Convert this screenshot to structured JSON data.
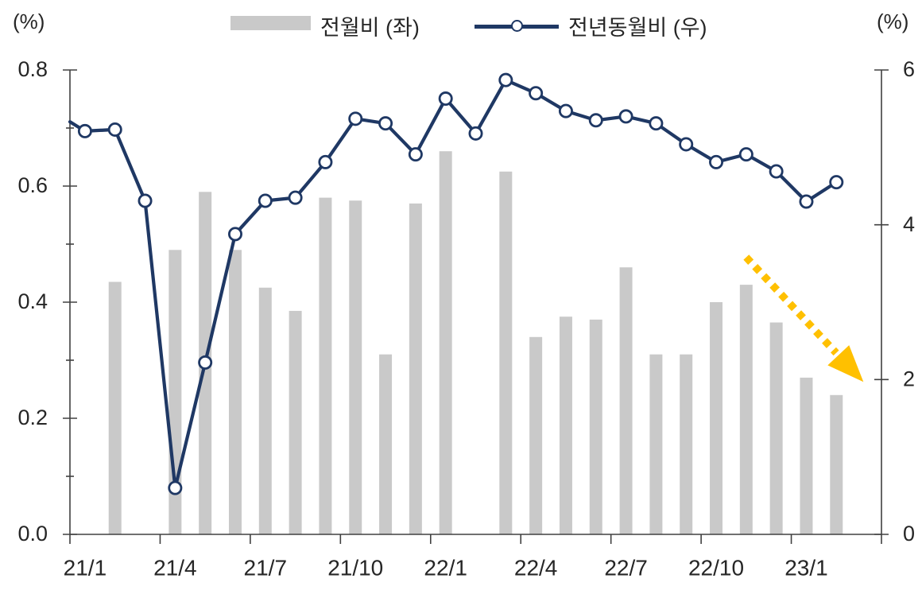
{
  "units": {
    "left": "(%)",
    "right": "(%)"
  },
  "legend": [
    {
      "label": "전월비 (좌)",
      "type": "bar-swatch",
      "color": "#C9C9C9"
    },
    {
      "label": "전년동월비 (우)",
      "type": "line-marker-swatch",
      "color": "#1F3864"
    }
  ],
  "chart_data": {
    "type": "combo",
    "title": "",
    "categories": [
      "21/1",
      "21/2",
      "21/3",
      "21/4",
      "21/5",
      "21/6",
      "21/7",
      "21/8",
      "21/9",
      "21/10",
      "21/11",
      "21/12",
      "22/1",
      "22/2",
      "22/3",
      "22/4",
      "22/5",
      "22/6",
      "22/7",
      "22/8",
      "22/9",
      "22/10",
      "22/11",
      "22/12",
      "23/1",
      "23/2"
    ],
    "x_axis": {
      "tick_label_months": [
        "21/1",
        "21/4",
        "21/7",
        "21/10",
        "22/1",
        "22/4",
        "22/7",
        "22/10",
        "23/1"
      ],
      "label_every": 3,
      "total_slots": 27,
      "ticks_between_categories": true
    },
    "left_axis": {
      "unit": "(%)",
      "min": 0,
      "max": 0.8,
      "major": 0.2,
      "minor": 0.1,
      "tick_labels": [
        "0.0",
        "0.2",
        "0.4",
        "0.6",
        "0.8"
      ]
    },
    "right_axis": {
      "unit": "(%)",
      "min": 0,
      "max": 6,
      "major": 2,
      "tick_labels": [
        "0",
        "2",
        "4",
        "6"
      ]
    },
    "series": [
      {
        "name": "전월비 (좌)",
        "type": "bar",
        "axis": "left",
        "color": "#C9C9C9",
        "values": [
          null,
          0.435,
          null,
          0.49,
          0.59,
          0.49,
          0.425,
          0.385,
          0.58,
          0.575,
          0.31,
          0.57,
          0.66,
          null,
          0.625,
          0.34,
          0.375,
          0.37,
          0.46,
          0.31,
          0.31,
          0.4,
          0.43,
          0.365,
          0.27,
          0.24
        ]
      },
      {
        "name": "전년동월비 (우)",
        "type": "line",
        "axis": "right",
        "color": "#1F3864",
        "marker": "circle-white",
        "edge_clip_value": 5.33,
        "values": [
          5.21,
          5.23,
          4.31,
          0.6,
          2.22,
          3.88,
          4.31,
          4.35,
          4.81,
          5.37,
          5.31,
          4.91,
          5.63,
          5.18,
          5.87,
          5.7,
          5.47,
          5.35,
          5.4,
          5.31,
          5.04,
          4.81,
          4.91,
          4.69,
          4.3,
          4.55
        ]
      }
    ],
    "annotation_arrow": {
      "color": "#FFC000",
      "style": "dotted",
      "from_month_index": 22.0,
      "from_value_right": 3.58,
      "to_month_index": 25.9,
      "to_value_right": 1.97
    },
    "grid": "off",
    "legend_position": "top-center"
  }
}
